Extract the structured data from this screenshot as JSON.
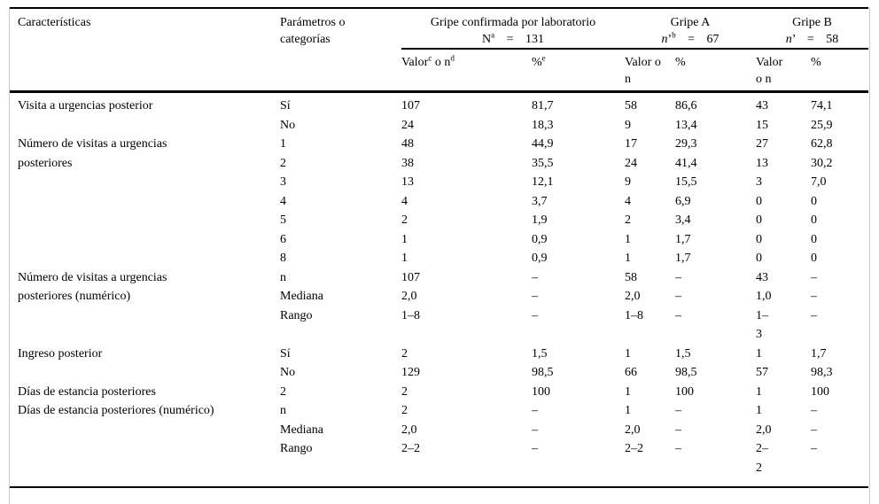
{
  "table": {
    "header": {
      "col1": "Características",
      "col2": "Parámetros o\ncategorías",
      "groups": [
        {
          "title": "Gripe confirmada por laboratorio",
          "n_line": "N^{a} = 131"
        },
        {
          "title": "Gripe A",
          "n_line": "*n*’^{b} = 67"
        },
        {
          "title": "Gripe B",
          "n_line": "*n*’ = 58"
        }
      ],
      "subcols": [
        "Valor^{c} o n^{d}",
        "%^{e}",
        "Valor o\nn",
        "%",
        "Valor\no n",
        "%"
      ]
    },
    "body_groups": [
      {
        "label": "Visita a urgencias posterior",
        "rows": [
          {
            "cat": "Sí",
            "vals": [
              "107",
              "81,7",
              "58",
              "86,6",
              "43",
              "74,1"
            ]
          },
          {
            "cat": "No",
            "vals": [
              "24",
              "18,3",
              "9",
              "13,4",
              "15",
              "25,9"
            ]
          }
        ]
      },
      {
        "label": "Número de visitas a urgencias\nposteriores",
        "rows": [
          {
            "cat": "1",
            "vals": [
              "48",
              "44,9",
              "17",
              "29,3",
              "27",
              "62,8"
            ]
          },
          {
            "cat": "2",
            "vals": [
              "38",
              "35,5",
              "24",
              "41,4",
              "13",
              "30,2"
            ]
          },
          {
            "cat": "3",
            "vals": [
              "13",
              "12,1",
              "9",
              "15,5",
              "3",
              "7,0"
            ]
          },
          {
            "cat": "4",
            "vals": [
              "4",
              "3,7",
              "4",
              "6,9",
              "0",
              "0"
            ]
          },
          {
            "cat": "5",
            "vals": [
              "2",
              "1,9",
              "2",
              "3,4",
              "0",
              "0"
            ]
          },
          {
            "cat": "6",
            "vals": [
              "1",
              "0,9",
              "1",
              "1,7",
              "0",
              "0"
            ]
          },
          {
            "cat": "8",
            "vals": [
              "1",
              "0,9",
              "1",
              "1,7",
              "0",
              "0"
            ]
          }
        ]
      },
      {
        "label": "Número de visitas a urgencias\nposteriores (numérico)",
        "rows": [
          {
            "cat": "n",
            "vals": [
              "107",
              "–",
              "58",
              "–",
              "43",
              "–"
            ]
          },
          {
            "cat": "Mediana",
            "vals": [
              "2,0",
              "–",
              "2,0",
              "–",
              "1,0",
              "–"
            ]
          },
          {
            "cat": "Rango",
            "vals": [
              "1–8",
              "–",
              "1–8",
              "–",
              "1–\n3",
              "–"
            ]
          }
        ]
      },
      {
        "label": "Ingreso posterior",
        "rows": [
          {
            "cat": "Sí",
            "vals": [
              "2",
              "1,5",
              "1",
              "1,5",
              "1",
              "1,7"
            ]
          },
          {
            "cat": "No",
            "vals": [
              "129",
              "98,5",
              "66",
              "98,5",
              "57",
              "98,3"
            ]
          }
        ]
      },
      {
        "label": "Días de estancia posteriores",
        "rows": [
          {
            "cat": "2",
            "vals": [
              "2",
              "100",
              "1",
              "100",
              "1",
              "100"
            ]
          }
        ]
      },
      {
        "label": "Días de estancia posteriores (numérico)",
        "rows": [
          {
            "cat": "n",
            "vals": [
              "2",
              "–",
              "1",
              "–",
              "1",
              "–"
            ]
          },
          {
            "cat": "Mediana",
            "vals": [
              "2,0",
              "–",
              "2,0",
              "–",
              "2,0",
              "–"
            ]
          },
          {
            "cat": "Rango",
            "vals": [
              "2–2",
              "–",
              "2–2",
              "–",
              "2–\n2",
              "–"
            ]
          }
        ]
      }
    ]
  },
  "colors": {
    "rule": "#000000",
    "frame_border": "#c9c9c9",
    "text": "#000000",
    "background": "#ffffff"
  }
}
